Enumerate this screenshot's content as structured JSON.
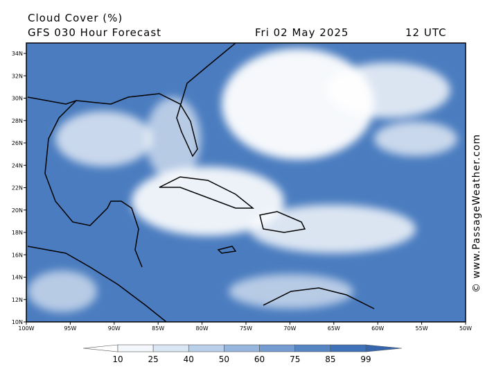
{
  "header": {
    "title": "Cloud Cover (%)",
    "model": "GFS 030 Hour Forecast",
    "date": "Fri 02 May 2025",
    "time": "12 UTC"
  },
  "map": {
    "lat_labels": [
      "34N",
      "32N",
      "30N",
      "28N",
      "26N",
      "24N",
      "22N",
      "20N",
      "18N",
      "16N",
      "14N",
      "12N",
      "10N"
    ],
    "lon_labels": [
      "100W",
      "95W",
      "90W",
      "85W",
      "80W",
      "75W",
      "70W",
      "65W",
      "60W",
      "55W",
      "50W"
    ]
  },
  "colorbar": {
    "ticks": [
      10,
      25,
      40,
      50,
      60,
      75,
      85,
      99
    ],
    "colors": [
      "#ffffff",
      "#f4f7fc",
      "#dbe6f4",
      "#b9cfea",
      "#96b6dd",
      "#749cd0",
      "#5585c3",
      "#3f72b8",
      "#3566ad"
    ]
  },
  "watermark": "© www.PassageWeather.com"
}
